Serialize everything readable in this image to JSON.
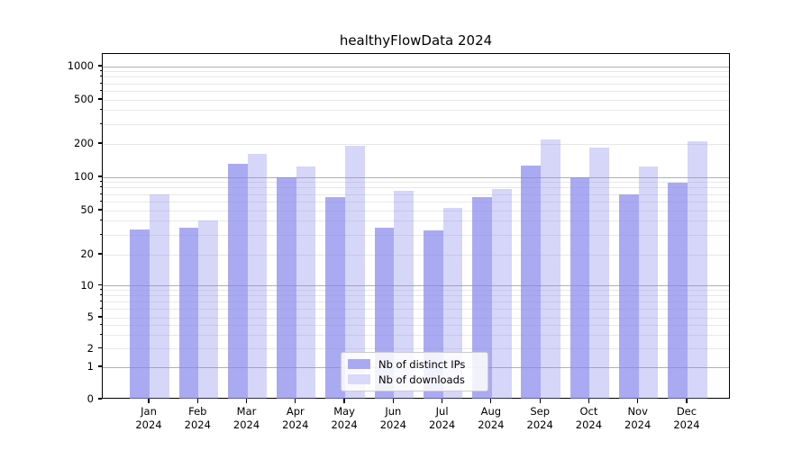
{
  "title": "healthyFlowData 2024",
  "chart_data": {
    "type": "bar",
    "title": "healthyFlowData 2024",
    "categories": [
      "Jan 2024",
      "Feb 2024",
      "Mar 2024",
      "Apr 2024",
      "May 2024",
      "Jun 2024",
      "Jul 2024",
      "Aug 2024",
      "Sep 2024",
      "Oct 2024",
      "Nov 2024",
      "Dec 2024"
    ],
    "month_labels": [
      "Jan",
      "Feb",
      "Mar",
      "Apr",
      "May",
      "Jun",
      "Jul",
      "Aug",
      "Sep",
      "Oct",
      "Nov",
      "Dec"
    ],
    "year_label": "2024",
    "series": [
      {
        "name": "Nb of distinct IPs",
        "color": "rgba(134,134,236,0.70)",
        "legend_swatch_color": "#a9a9f1",
        "values": [
          34,
          35,
          132,
          100,
          66,
          35,
          33,
          66,
          128,
          100,
          70,
          90
        ]
      },
      {
        "name": "Nb of downloads",
        "color": "rgba(134,134,236,0.34)",
        "legend_swatch_color": "#d9d9f9",
        "values": [
          70,
          41,
          164,
          125,
          193,
          76,
          53,
          79,
          219,
          185,
          125,
          210
        ]
      }
    ],
    "y_axis": {
      "scale": "symlog",
      "tick_labels": [
        "0",
        "1",
        "2",
        "5",
        "10",
        "20",
        "50",
        "100",
        "200",
        "500",
        "1000"
      ],
      "tick_values": [
        0,
        1,
        2,
        5,
        10,
        20,
        50,
        100,
        200,
        500,
        1000
      ],
      "major_grid_values": [
        1,
        10,
        100,
        1000
      ],
      "ylim": [
        0,
        1300
      ]
    },
    "grid": true,
    "legend_position": "lower center",
    "colors": {
      "major_grid": "#b0b0b0",
      "minor_grid": "#e8e8e8",
      "axis": "#000000",
      "bar_base": "#8686ec"
    }
  }
}
